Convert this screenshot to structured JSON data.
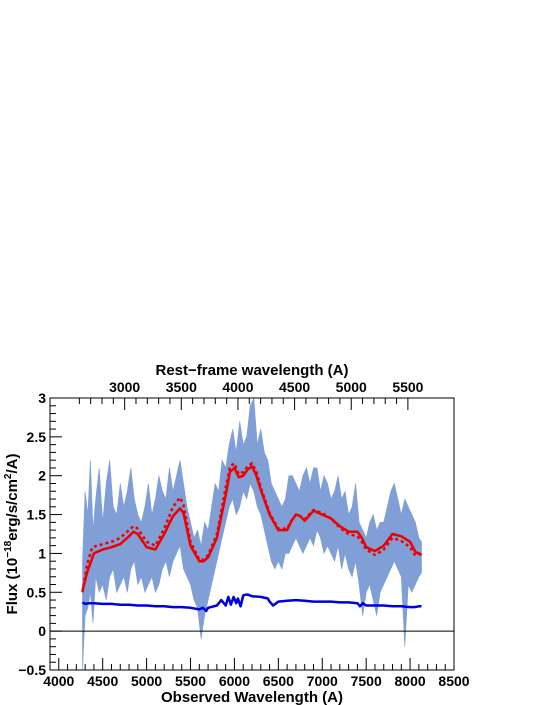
{
  "chart_data": {
    "type": "line",
    "title": "",
    "xlabel": "Observed Wavelength (A)",
    "ylabel": "Flux (10^-18 erg/s/cm^2/A)",
    "ylabel_parts": {
      "pre": "Flux (10",
      "exp1": "−18",
      "mid": "erg/s/cm",
      "exp2": "2",
      "post": "/A)"
    },
    "top_axis_label": "Rest−frame wavelength (A)",
    "xlim": [
      3900,
      8500
    ],
    "ylim": [
      -0.5,
      3
    ],
    "x_ticks": [
      "4000",
      "4500",
      "5000",
      "5500",
      "6000",
      "6500",
      "7000",
      "7500",
      "8000",
      "8500"
    ],
    "y_ticks": [
      "−0.5",
      "0",
      "0.5",
      "1",
      "1.5",
      "2",
      "2.5",
      "3"
    ],
    "top_ticks": [
      "3000",
      "3500",
      "4000",
      "4500",
      "5000",
      "5500"
    ],
    "top_tick_positions_x": [
      4750,
      5395,
      6040,
      6685,
      7330,
      7975
    ],
    "grid": false,
    "colors": {
      "spectrum_fill": "#7f9fd6",
      "model_solid": "#ee0000",
      "model_dotted": "#ee0000",
      "error": "#0000dd",
      "zero_line": "#000000"
    },
    "series": [
      {
        "style": "solid",
        "x": [
          4270,
          4320,
          4400,
          4500,
          4600,
          4700,
          4800,
          4850,
          4900,
          5000,
          5100,
          5200,
          5300,
          5380,
          5420,
          5500,
          5600,
          5650,
          5700,
          5800,
          5900,
          5950,
          6000,
          6050,
          6100,
          6150,
          6200,
          6250,
          6300,
          6400,
          6500,
          6600,
          6650,
          6700,
          6750,
          6800,
          6900,
          7000,
          7100,
          7200,
          7300,
          7400,
          7450,
          7500,
          7600,
          7700,
          7800,
          7900,
          8000,
          8060,
          8130
        ],
        "values": [
          0.52,
          0.75,
          1.0,
          1.05,
          1.08,
          1.12,
          1.22,
          1.28,
          1.25,
          1.08,
          1.05,
          1.25,
          1.48,
          1.58,
          1.52,
          1.1,
          0.9,
          0.9,
          0.95,
          1.2,
          1.75,
          2.05,
          2.1,
          1.98,
          2.0,
          2.08,
          2.12,
          2.0,
          1.82,
          1.5,
          1.3,
          1.3,
          1.42,
          1.5,
          1.48,
          1.42,
          1.55,
          1.5,
          1.45,
          1.35,
          1.28,
          1.28,
          1.2,
          1.08,
          1.03,
          1.1,
          1.25,
          1.22,
          1.15,
          1.02,
          0.98
        ]
      },
      {
        "style": "dotted",
        "x": [
          4270,
          4320,
          4380,
          4500,
          4600,
          4700,
          4800,
          4850,
          4900,
          5000,
          5100,
          5200,
          5300,
          5380,
          5420,
          5500,
          5600,
          5650,
          5700,
          5800,
          5900,
          5950,
          6000,
          6050,
          6100,
          6150,
          6200,
          6250,
          6300,
          6400,
          6500,
          6600,
          6650,
          6700,
          6750,
          6800,
          6900,
          7000,
          7100,
          7200,
          7300,
          7400,
          7450,
          7500,
          7600,
          7700,
          7800,
          7900,
          8000,
          8060,
          8130
        ],
        "values": [
          0.5,
          0.85,
          1.08,
          1.12,
          1.15,
          1.2,
          1.3,
          1.35,
          1.32,
          1.15,
          1.1,
          1.32,
          1.6,
          1.72,
          1.62,
          1.15,
          0.92,
          0.92,
          0.98,
          1.25,
          1.85,
          2.12,
          2.16,
          2.02,
          2.05,
          2.12,
          2.16,
          2.05,
          1.85,
          1.52,
          1.32,
          1.32,
          1.42,
          1.5,
          1.48,
          1.44,
          1.56,
          1.52,
          1.45,
          1.33,
          1.25,
          1.22,
          1.15,
          1.05,
          0.98,
          1.05,
          1.2,
          1.16,
          1.08,
          0.97,
          1.02
        ]
      },
      {
        "style": "error",
        "x": [
          4270,
          4300,
          4350,
          4400,
          4500,
          4600,
          4700,
          4800,
          4900,
          5000,
          5100,
          5200,
          5300,
          5400,
          5500,
          5600,
          5640,
          5680,
          5700,
          5800,
          5850,
          5900,
          5930,
          5960,
          5990,
          6020,
          6040,
          6070,
          6100,
          6130,
          6150,
          6200,
          6300,
          6380,
          6400,
          6440,
          6500,
          6600,
          6700,
          6800,
          6900,
          7000,
          7100,
          7200,
          7300,
          7400,
          7430,
          7460,
          7500,
          7600,
          7700,
          7800,
          7900,
          8000,
          8050,
          8100,
          8130
        ],
        "values": [
          0.37,
          0.35,
          0.36,
          0.36,
          0.35,
          0.35,
          0.34,
          0.34,
          0.33,
          0.33,
          0.32,
          0.32,
          0.31,
          0.31,
          0.3,
          0.28,
          0.3,
          0.26,
          0.3,
          0.33,
          0.4,
          0.33,
          0.44,
          0.34,
          0.44,
          0.36,
          0.42,
          0.32,
          0.46,
          0.47,
          0.47,
          0.45,
          0.44,
          0.42,
          0.38,
          0.33,
          0.38,
          0.39,
          0.4,
          0.39,
          0.38,
          0.38,
          0.38,
          0.37,
          0.37,
          0.36,
          0.32,
          0.36,
          0.33,
          0.33,
          0.33,
          0.32,
          0.32,
          0.31,
          0.31,
          0.32,
          0.32
        ]
      }
    ],
    "spectrum_band": {
      "x": [
        4270,
        4300,
        4330,
        4360,
        4390,
        4420,
        4460,
        4500,
        4540,
        4580,
        4620,
        4660,
        4700,
        4740,
        4780,
        4820,
        4860,
        4900,
        4940,
        4980,
        5020,
        5060,
        5100,
        5140,
        5180,
        5220,
        5260,
        5300,
        5340,
        5380,
        5420,
        5460,
        5500,
        5540,
        5580,
        5620,
        5660,
        5700,
        5740,
        5780,
        5820,
        5860,
        5900,
        5940,
        5980,
        6020,
        6060,
        6100,
        6140,
        6180,
        6220,
        6260,
        6300,
        6340,
        6380,
        6420,
        6460,
        6500,
        6540,
        6580,
        6620,
        6660,
        6700,
        6740,
        6780,
        6820,
        6860,
        6900,
        6940,
        6980,
        7020,
        7060,
        7100,
        7140,
        7180,
        7220,
        7260,
        7300,
        7340,
        7380,
        7420,
        7460,
        7500,
        7540,
        7580,
        7620,
        7660,
        7700,
        7740,
        7780,
        7820,
        7860,
        7900,
        7940,
        7980,
        8020,
        8060,
        8100,
        8130
      ],
      "upper": [
        0.9,
        1.8,
        1.5,
        2.2,
        1.3,
        1.7,
        2.1,
        1.4,
        1.9,
        2.2,
        1.6,
        1.5,
        1.9,
        1.6,
        1.8,
        2.1,
        1.7,
        1.5,
        1.4,
        1.6,
        1.9,
        1.5,
        1.7,
        2.0,
        1.8,
        1.7,
        2.1,
        1.8,
        2.0,
        2.2,
        1.9,
        1.6,
        1.4,
        1.2,
        1.3,
        1.1,
        1.4,
        1.3,
        1.6,
        1.9,
        1.8,
        2.2,
        2.1,
        2.4,
        2.6,
        2.3,
        2.7,
        2.4,
        2.5,
        2.9,
        3.0,
        2.4,
        2.6,
        2.3,
        2.2,
        1.9,
        1.8,
        1.7,
        1.6,
        1.7,
        2.0,
        2.0,
        1.9,
        1.8,
        2.0,
        2.1,
        1.9,
        2.1,
        2.1,
        1.8,
        2.0,
        1.9,
        1.7,
        1.8,
        2.0,
        1.7,
        1.8,
        1.5,
        1.6,
        1.9,
        1.4,
        1.3,
        1.2,
        1.4,
        1.5,
        1.3,
        1.4,
        1.4,
        1.6,
        1.8,
        1.9,
        1.7,
        1.5,
        1.7,
        1.6,
        1.5,
        1.4,
        1.2,
        1.15
      ],
      "lower": [
        -0.5,
        0.2,
        0.3,
        0.5,
        0.1,
        0.7,
        0.5,
        0.6,
        0.4,
        0.7,
        0.8,
        0.5,
        0.6,
        0.7,
        0.5,
        0.8,
        0.9,
        0.6,
        0.7,
        0.5,
        0.6,
        0.7,
        0.5,
        0.6,
        0.8,
        0.9,
        0.7,
        0.9,
        1.0,
        1.1,
        0.8,
        0.7,
        0.6,
        0.4,
        0.3,
        -0.1,
        0.2,
        0.4,
        0.6,
        0.8,
        1.0,
        1.2,
        1.4,
        1.6,
        1.7,
        1.5,
        1.6,
        1.8,
        1.7,
        1.9,
        1.8,
        1.6,
        1.5,
        1.3,
        1.1,
        0.9,
        0.8,
        0.9,
        0.8,
        1.0,
        1.0,
        1.1,
        1.2,
        1.1,
        1.0,
        1.1,
        1.2,
        1.1,
        1.3,
        1.2,
        1.0,
        1.1,
        1.0,
        0.9,
        1.1,
        0.8,
        1.0,
        0.8,
        0.7,
        0.9,
        0.6,
        0.2,
        0.5,
        0.6,
        0.4,
        0.2,
        0.5,
        0.6,
        0.7,
        0.8,
        0.9,
        0.8,
        0.7,
        -0.2,
        0.6,
        0.5,
        0.6,
        0.7,
        0.75
      ]
    },
    "legend": "none"
  }
}
